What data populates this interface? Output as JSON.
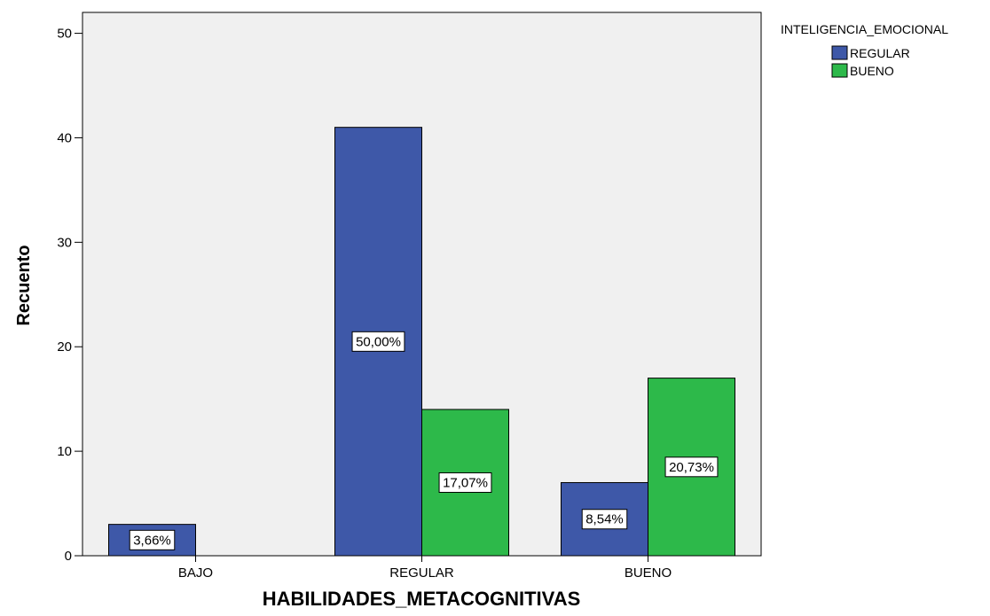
{
  "chart_data": {
    "type": "bar",
    "categories": [
      "BAJO",
      "REGULAR",
      "BUENO"
    ],
    "series": [
      {
        "name": "REGULAR",
        "values": [
          3,
          41,
          7
        ],
        "labels": [
          "3,66%",
          "50,00%",
          "8,54%"
        ]
      },
      {
        "name": "BUENO",
        "values": [
          0,
          14,
          17
        ],
        "labels": [
          "",
          "17,07%",
          "20,73%"
        ]
      }
    ],
    "xlabel": "HABILIDADES_METACOGNITIVAS",
    "ylabel": "Recuento",
    "ylim": [
      0,
      52
    ],
    "yticks": [
      0,
      10,
      20,
      30,
      40,
      50
    ],
    "legend_title": "INTELIGENCIA_EMOCIONAL",
    "legend_position": "top-right",
    "grid": false,
    "colors": {
      "series": [
        "#3e58a8",
        "#2db94a"
      ],
      "plot_background": "#f0f0f0",
      "bar_border": "#000000"
    }
  }
}
